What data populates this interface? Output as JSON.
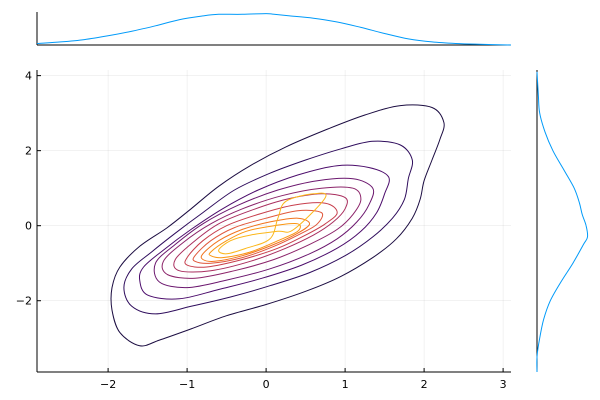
{
  "chart_data": [
    {
      "type": "contour",
      "title": "",
      "xlabel": "",
      "ylabel": "",
      "xlim": [
        -2.9,
        3.1
      ],
      "ylim": [
        -3.9,
        4.15
      ],
      "x_ticks": [
        "−2",
        "−1",
        "0",
        "1",
        "2",
        "3"
      ],
      "y_ticks": [
        "−2",
        "0",
        "2",
        "4"
      ],
      "grid": true,
      "legend": "none",
      "levels": [
        {
          "color": "#1b0c41",
          "points": [
            [
              -1.85,
              -1.1
            ],
            [
              -1.6,
              -0.55
            ],
            [
              -1.25,
              -0.05
            ],
            [
              -0.95,
              0.45
            ],
            [
              -0.6,
              1.05
            ],
            [
              -0.2,
              1.6
            ],
            [
              0.25,
              2.1
            ],
            [
              0.75,
              2.55
            ],
            [
              1.25,
              2.95
            ],
            [
              1.7,
              3.2
            ],
            [
              2.1,
              3.15
            ],
            [
              2.25,
              2.75
            ],
            [
              2.2,
              2.3
            ],
            [
              2.1,
              1.75
            ],
            [
              2.0,
              1.2
            ],
            [
              1.95,
              0.7
            ],
            [
              1.85,
              0.2
            ],
            [
              1.65,
              -0.35
            ],
            [
              1.35,
              -0.85
            ],
            [
              0.95,
              -1.35
            ],
            [
              0.5,
              -1.75
            ],
            [
              0.0,
              -2.1
            ],
            [
              -0.5,
              -2.4
            ],
            [
              -0.95,
              -2.75
            ],
            [
              -1.35,
              -3.05
            ],
            [
              -1.6,
              -3.2
            ],
            [
              -1.85,
              -2.85
            ],
            [
              -1.95,
              -2.25
            ],
            [
              -1.95,
              -1.65
            ]
          ]
        },
        {
          "color": "#2e0c5c",
          "points": [
            [
              -1.7,
              -1.15
            ],
            [
              -1.45,
              -0.7
            ],
            [
              -1.15,
              -0.2
            ],
            [
              -0.8,
              0.35
            ],
            [
              -0.4,
              0.95
            ],
            [
              0.05,
              1.4
            ],
            [
              0.5,
              1.75
            ],
            [
              0.95,
              2.05
            ],
            [
              1.35,
              2.25
            ],
            [
              1.7,
              2.15
            ],
            [
              1.85,
              1.75
            ],
            [
              1.8,
              1.25
            ],
            [
              1.75,
              0.7
            ],
            [
              1.6,
              0.2
            ],
            [
              1.35,
              -0.3
            ],
            [
              1.0,
              -0.8
            ],
            [
              0.55,
              -1.25
            ],
            [
              0.05,
              -1.6
            ],
            [
              -0.45,
              -1.9
            ],
            [
              -0.95,
              -2.15
            ],
            [
              -1.4,
              -2.35
            ],
            [
              -1.7,
              -2.15
            ],
            [
              -1.8,
              -1.65
            ]
          ]
        },
        {
          "color": "#4b0c6b",
          "points": [
            [
              -1.55,
              -1.1
            ],
            [
              -1.3,
              -0.65
            ],
            [
              -0.95,
              -0.1
            ],
            [
              -0.55,
              0.45
            ],
            [
              -0.1,
              0.95
            ],
            [
              0.4,
              1.35
            ],
            [
              0.9,
              1.6
            ],
            [
              1.3,
              1.55
            ],
            [
              1.55,
              1.3
            ],
            [
              1.5,
              0.85
            ],
            [
              1.4,
              0.35
            ],
            [
              1.2,
              -0.15
            ],
            [
              0.9,
              -0.6
            ],
            [
              0.45,
              -1.05
            ],
            [
              -0.05,
              -1.4
            ],
            [
              -0.6,
              -1.7
            ],
            [
              -1.1,
              -1.95
            ],
            [
              -1.5,
              -1.85
            ],
            [
              -1.6,
              -1.45
            ]
          ]
        },
        {
          "color": "#6b176e",
          "points": [
            [
              -1.4,
              -1.0
            ],
            [
              -1.15,
              -0.5
            ],
            [
              -0.8,
              0.05
            ],
            [
              -0.35,
              0.55
            ],
            [
              0.15,
              0.95
            ],
            [
              0.65,
              1.2
            ],
            [
              1.1,
              1.25
            ],
            [
              1.35,
              1.0
            ],
            [
              1.3,
              0.55
            ],
            [
              1.15,
              0.1
            ],
            [
              0.9,
              -0.35
            ],
            [
              0.55,
              -0.75
            ],
            [
              0.05,
              -1.15
            ],
            [
              -0.5,
              -1.45
            ],
            [
              -1.0,
              -1.65
            ],
            [
              -1.35,
              -1.5
            ]
          ]
        },
        {
          "color": "#8b2369",
          "points": [
            [
              -1.3,
              -0.95
            ],
            [
              -1.05,
              -0.45
            ],
            [
              -0.7,
              0.05
            ],
            [
              -0.3,
              0.45
            ],
            [
              0.2,
              0.8
            ],
            [
              0.7,
              1.0
            ],
            [
              1.1,
              1.0
            ],
            [
              1.2,
              0.7
            ],
            [
              1.1,
              0.3
            ],
            [
              0.9,
              -0.1
            ],
            [
              0.55,
              -0.5
            ],
            [
              0.1,
              -0.9
            ],
            [
              -0.4,
              -1.2
            ],
            [
              -0.9,
              -1.4
            ],
            [
              -1.25,
              -1.3
            ]
          ]
        },
        {
          "color": "#a92e5e",
          "points": [
            [
              -1.15,
              -0.9
            ],
            [
              -0.9,
              -0.4
            ],
            [
              -0.6,
              0.05
            ],
            [
              -0.2,
              0.4
            ],
            [
              0.25,
              0.7
            ],
            [
              0.7,
              0.85
            ],
            [
              1.0,
              0.75
            ],
            [
              1.0,
              0.45
            ],
            [
              0.85,
              0.1
            ],
            [
              0.6,
              -0.25
            ],
            [
              0.25,
              -0.6
            ],
            [
              -0.2,
              -0.95
            ],
            [
              -0.7,
              -1.2
            ],
            [
              -1.1,
              -1.2
            ]
          ]
        },
        {
          "color": "#c73e4c",
          "points": [
            [
              -1.0,
              -0.85
            ],
            [
              -0.8,
              -0.4
            ],
            [
              -0.5,
              0.0
            ],
            [
              -0.1,
              0.3
            ],
            [
              0.35,
              0.55
            ],
            [
              0.75,
              0.6
            ],
            [
              0.9,
              0.35
            ],
            [
              0.75,
              0.05
            ],
            [
              0.5,
              -0.25
            ],
            [
              0.15,
              -0.6
            ],
            [
              -0.3,
              -0.9
            ],
            [
              -0.75,
              -1.1
            ],
            [
              -1.0,
              -1.05
            ]
          ]
        },
        {
          "color": "#e0573b",
          "points": [
            [
              -0.9,
              -0.8
            ],
            [
              -0.7,
              -0.4
            ],
            [
              -0.4,
              -0.05
            ],
            [
              0.0,
              0.2
            ],
            [
              0.4,
              0.4
            ],
            [
              0.7,
              0.35
            ],
            [
              0.65,
              0.05
            ],
            [
              0.45,
              -0.2
            ],
            [
              0.1,
              -0.55
            ],
            [
              -0.3,
              -0.85
            ],
            [
              -0.7,
              -1.0
            ],
            [
              -0.9,
              -0.95
            ]
          ]
        },
        {
          "color": "#f1731d",
          "points": [
            [
              -0.8,
              -0.75
            ],
            [
              -0.6,
              -0.4
            ],
            [
              -0.3,
              -0.1
            ],
            [
              0.05,
              0.1
            ],
            [
              0.4,
              0.2
            ],
            [
              0.55,
              0.05
            ],
            [
              0.4,
              -0.2
            ],
            [
              0.1,
              -0.5
            ],
            [
              -0.3,
              -0.8
            ],
            [
              -0.65,
              -0.95
            ],
            [
              -0.8,
              -0.9
            ]
          ]
        },
        {
          "color": "#fa9410",
          "points": [
            [
              -0.7,
              -0.7
            ],
            [
              -0.5,
              -0.4
            ],
            [
              -0.25,
              -0.15
            ],
            [
              0.1,
              0.0
            ],
            [
              0.4,
              0.05
            ],
            [
              0.4,
              -0.15
            ],
            [
              0.15,
              -0.4
            ],
            [
              -0.2,
              -0.7
            ],
            [
              -0.55,
              -0.85
            ],
            [
              -0.7,
              -0.8
            ]
          ]
        },
        {
          "color": "#fbb71b",
          "points": [
            [
              -0.6,
              -0.65
            ],
            [
              -0.45,
              -0.4
            ],
            [
              -0.2,
              -0.25
            ],
            [
              0.15,
              -0.15
            ],
            [
              0.35,
              -0.1
            ],
            [
              0.75,
              0.75
            ],
            [
              0.6,
              0.85
            ],
            [
              0.25,
              0.65
            ],
            [
              0.15,
              0.2
            ],
            [
              0.05,
              -0.35
            ],
            [
              -0.25,
              -0.6
            ],
            [
              -0.5,
              -0.75
            ]
          ]
        }
      ]
    },
    {
      "type": "area",
      "title": "",
      "xlabel": "",
      "ylabel": "",
      "series": [
        {
          "color": "#009af9",
          "x": [
            -2.9,
            -2.6,
            -2.3,
            -2.0,
            -1.7,
            -1.4,
            -1.1,
            -0.8,
            -0.6,
            -0.3,
            0.0,
            0.1,
            0.3,
            0.6,
            0.9,
            1.2,
            1.5,
            1.8,
            2.1,
            2.4,
            2.7,
            3.1
          ],
          "y": [
            0.02,
            0.04,
            0.07,
            0.12,
            0.18,
            0.25,
            0.33,
            0.38,
            0.4,
            0.4,
            0.41,
            0.4,
            0.38,
            0.35,
            0.3,
            0.23,
            0.15,
            0.08,
            0.04,
            0.02,
            0.01,
            0.0
          ]
        }
      ]
    },
    {
      "type": "area",
      "title": "",
      "xlabel": "",
      "ylabel": "",
      "series": [
        {
          "color": "#009af9",
          "x": [
            -3.9,
            -3.5,
            -3.0,
            -2.5,
            -2.0,
            -1.5,
            -1.0,
            -0.5,
            -0.3,
            0.0,
            0.3,
            0.6,
            1.0,
            1.5,
            2.0,
            2.5,
            3.0,
            3.5,
            4.1
          ],
          "y": [
            0.0,
            0.0,
            0.02,
            0.05,
            0.1,
            0.18,
            0.27,
            0.35,
            0.38,
            0.37,
            0.34,
            0.32,
            0.28,
            0.2,
            0.12,
            0.06,
            0.02,
            0.01,
            0.0
          ]
        }
      ]
    }
  ]
}
